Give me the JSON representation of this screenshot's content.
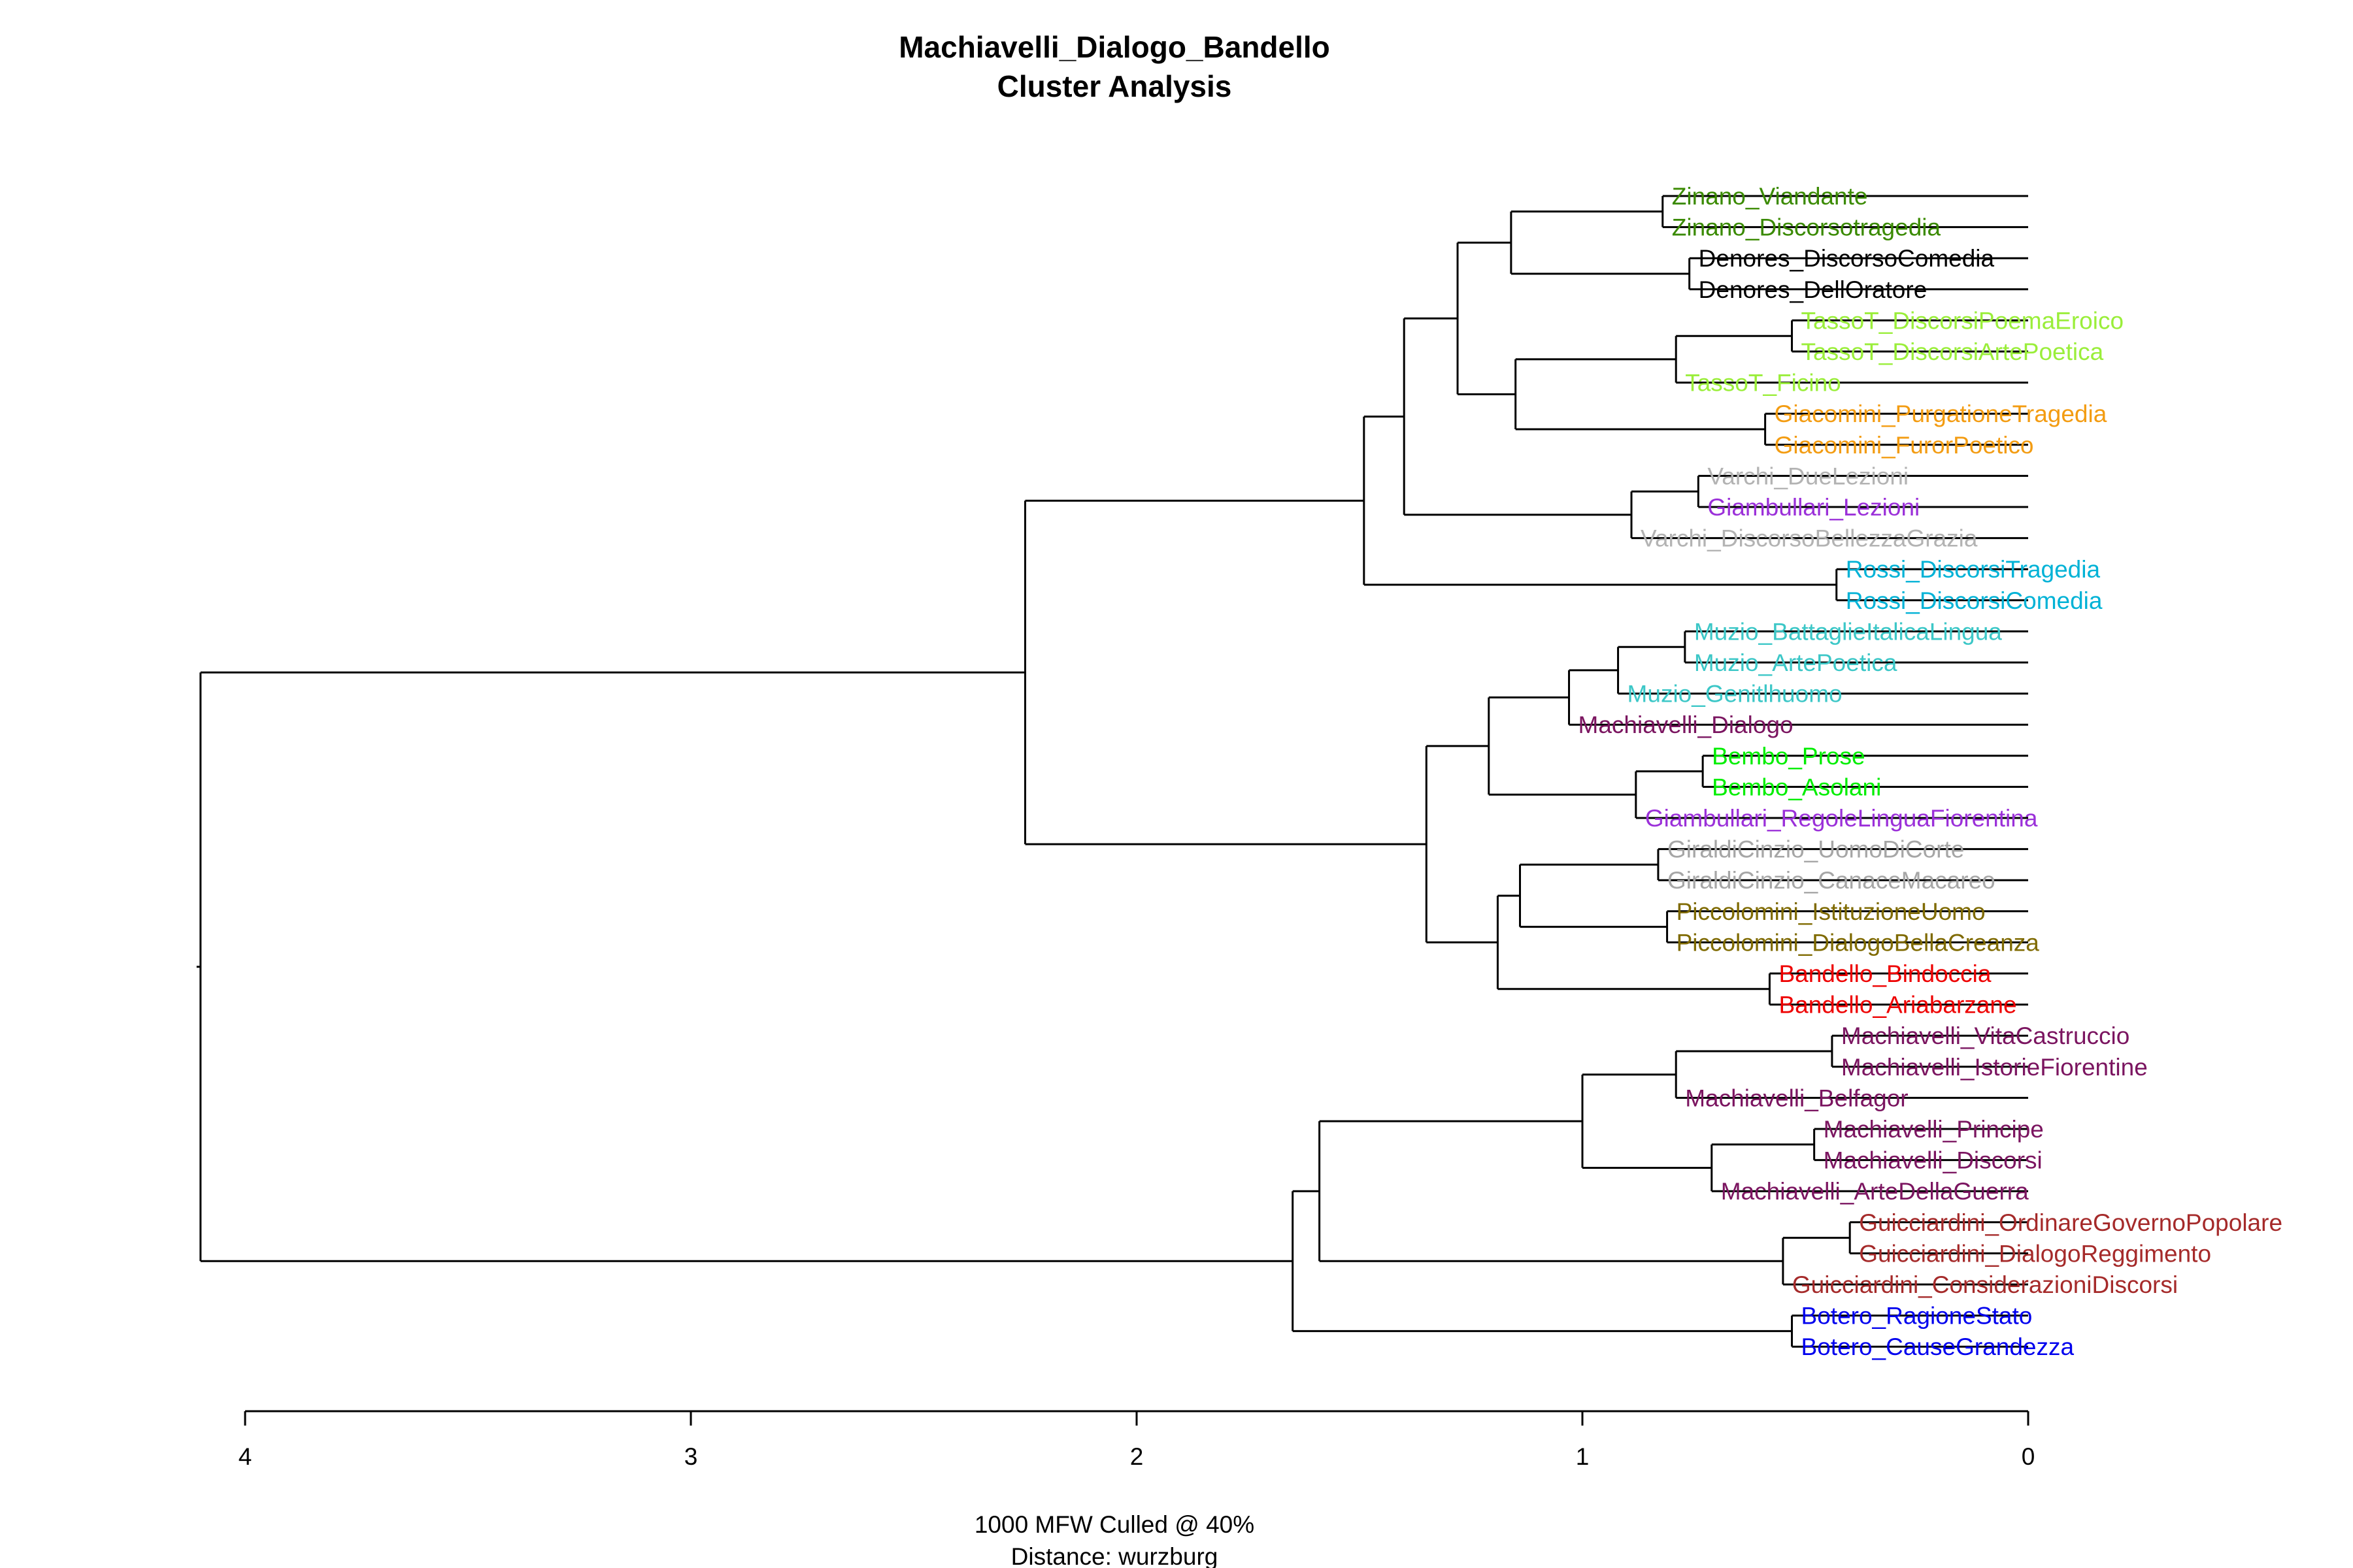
{
  "title": "Machiavelli_Dialogo_Bandello",
  "subtitle": "Cluster Analysis",
  "caption_line1": "1000 MFW  Culled @ 40%",
  "caption_line2": "Distance: wurzburg",
  "axis": {
    "ticks": [
      "4",
      "3",
      "2",
      "1",
      "0"
    ],
    "range": [
      4,
      0
    ]
  },
  "leaves": [
    {
      "label": "Zinano_Viandante",
      "color": "#3a8a00"
    },
    {
      "label": "Zinano_Discorsotragedia",
      "color": "#3a8a00"
    },
    {
      "label": "Denores_DiscorsoComedia",
      "color": "#000000"
    },
    {
      "label": "Denores_DellOratore",
      "color": "#000000"
    },
    {
      "label": "TassoT_DiscorsiPoemaEroico",
      "color": "#9aee3a"
    },
    {
      "label": "TassoT_DiscorsiArtePoetica",
      "color": "#9aee3a"
    },
    {
      "label": "TassoT_Ficino",
      "color": "#9aee3a"
    },
    {
      "label": "Giacomini_PurgationeTragedia",
      "color": "#f39c12"
    },
    {
      "label": "Giacomini_FurorPoetico",
      "color": "#f39c12"
    },
    {
      "label": "Varchi_DueLezioni",
      "color": "#b3b3b3"
    },
    {
      "label": "Giambullari_Lezioni",
      "color": "#9b30d9"
    },
    {
      "label": "Varchi_DiscorsoBellezzaGrazia",
      "color": "#b3b3b3"
    },
    {
      "label": "Rossi_DiscorsiTragedia",
      "color": "#00b2d6"
    },
    {
      "label": "Rossi_DiscorsiComedia",
      "color": "#00b2d6"
    },
    {
      "label": "Muzio_BattaglieItalicaLingua",
      "color": "#3cc7c7"
    },
    {
      "label": "Muzio_ArtePoetica",
      "color": "#3cc7c7"
    },
    {
      "label": "Muzio_Genitlhuomo",
      "color": "#3cc7c7"
    },
    {
      "label": "Machiavelli_Dialogo",
      "color": "#7b1560"
    },
    {
      "label": "Bembo_Prose",
      "color": "#00ee00"
    },
    {
      "label": "Bembo_Asolani",
      "color": "#00ee00"
    },
    {
      "label": "Giambullari_RegoleLinguaFiorentina",
      "color": "#9b30d9"
    },
    {
      "label": "GiraldiCinzio_UomoDiCorte",
      "color": "#a6a6a6"
    },
    {
      "label": "GiraldiCinzio_CanaceMacareo",
      "color": "#a6a6a6"
    },
    {
      "label": "Piccolomini_IstituzioneUomo",
      "color": "#7f6a00"
    },
    {
      "label": "Piccolomini_DialogoBellaCreanza",
      "color": "#7f6a00"
    },
    {
      "label": "Bandello_Bindoccia",
      "color": "#ee0000"
    },
    {
      "label": "Bandello_Ariabarzane",
      "color": "#ee0000"
    },
    {
      "label": "Machiavelli_VitaCastruccio",
      "color": "#7b1560"
    },
    {
      "label": "Machiavelli_IstorieFiorentine",
      "color": "#7b1560"
    },
    {
      "label": "Machiavelli_Belfagor",
      "color": "#7b1560"
    },
    {
      "label": "Machiavelli_Principe",
      "color": "#7b1560"
    },
    {
      "label": "Machiavelli_Discorsi",
      "color": "#7b1560"
    },
    {
      "label": "Machiavelli_ArteDellaGuerra",
      "color": "#7b1560"
    },
    {
      "label": "Guicciardini_OrdinareGovernoPopolare",
      "color": "#a52a2a"
    },
    {
      "label": "Guicciardini_DialogoReggimento",
      "color": "#a52a2a"
    },
    {
      "label": "Guicciardini_ConsiderazioniDiscorsi",
      "color": "#a52a2a"
    },
    {
      "label": "Botero_RagioneStato",
      "color": "#0000ee"
    },
    {
      "label": "Botero_CauseGrandezza",
      "color": "#0000ee"
    }
  ],
  "merges": [
    {
      "a": 0,
      "b": 1,
      "h": 0.82
    },
    {
      "a": 2,
      "b": 3,
      "h": 0.76
    },
    {
      "a": "m0",
      "b": "m1",
      "h": 1.16
    },
    {
      "a": 4,
      "b": 5,
      "h": 0.53
    },
    {
      "a": "m3",
      "b": 6,
      "h": 0.79
    },
    {
      "a": 7,
      "b": 8,
      "h": 0.59
    },
    {
      "a": "m4",
      "b": "m5",
      "h": 1.15
    },
    {
      "a": "m2",
      "b": "m6",
      "h": 1.28
    },
    {
      "a": 9,
      "b": 10,
      "h": 0.74
    },
    {
      "a": "m8",
      "b": 11,
      "h": 0.89
    },
    {
      "a": "m7",
      "b": "m9",
      "h": 1.4
    },
    {
      "a": 12,
      "b": 13,
      "h": 0.43
    },
    {
      "a": "m10",
      "b": "m11",
      "h": 1.49
    },
    {
      "a": 14,
      "b": 15,
      "h": 0.77
    },
    {
      "a": "m13",
      "b": 16,
      "h": 0.92
    },
    {
      "a": "m14",
      "b": 17,
      "h": 1.03
    },
    {
      "a": 18,
      "b": 19,
      "h": 0.73
    },
    {
      "a": "m16",
      "b": 20,
      "h": 0.88
    },
    {
      "a": "m15",
      "b": "m17",
      "h": 1.21
    },
    {
      "a": 21,
      "b": 22,
      "h": 0.83
    },
    {
      "a": 23,
      "b": 24,
      "h": 0.81
    },
    {
      "a": "m19",
      "b": "m20",
      "h": 1.14
    },
    {
      "a": 25,
      "b": 26,
      "h": 0.58
    },
    {
      "a": "m21",
      "b": "m22",
      "h": 1.19
    },
    {
      "a": "m18",
      "b": "m23",
      "h": 1.35
    },
    {
      "a": "m12",
      "b": "m24",
      "h": 2.25
    },
    {
      "a": 27,
      "b": 28,
      "h": 0.44
    },
    {
      "a": "m26",
      "b": 29,
      "h": 0.79
    },
    {
      "a": 30,
      "b": 31,
      "h": 0.48
    },
    {
      "a": "m28",
      "b": 32,
      "h": 0.71
    },
    {
      "a": "m27",
      "b": "m29",
      "h": 1.0
    },
    {
      "a": 33,
      "b": 34,
      "h": 0.4
    },
    {
      "a": "m31",
      "b": 35,
      "h": 0.55
    },
    {
      "a": "m30",
      "b": "m32",
      "h": 1.59
    },
    {
      "a": 36,
      "b": 37,
      "h": 0.53
    },
    {
      "a": "m33",
      "b": "m34",
      "h": 1.65
    },
    {
      "a": "m25",
      "b": "m35",
      "h": 4.1
    }
  ]
}
